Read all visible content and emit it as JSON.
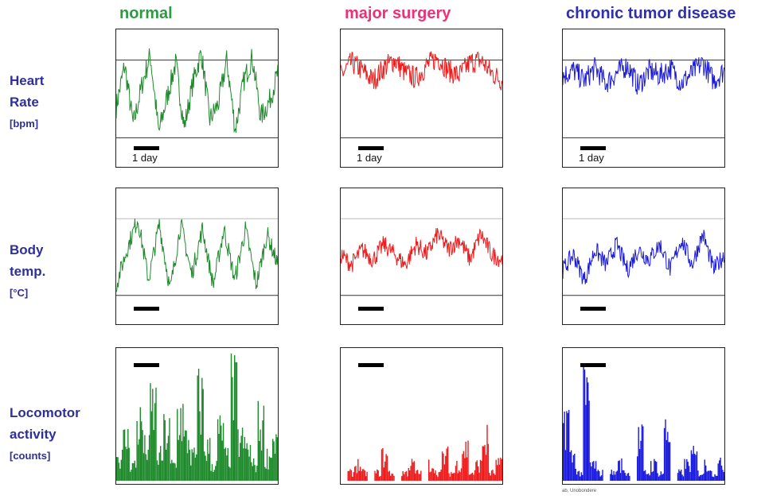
{
  "columns": [
    {
      "title": "normal",
      "color": "#2e9a44"
    },
    {
      "title": "major surgery",
      "color": "#ee2f7a"
    },
    {
      "title": "chronic tumor disease",
      "color": "#2f2fb2"
    }
  ],
  "rows": [
    {
      "label_lines": [
        "Heart",
        "Rate"
      ],
      "unit": "[bpm]"
    },
    {
      "label_lines": [
        "Body",
        "temp."
      ],
      "unit": "[°C]"
    },
    {
      "label_lines": [
        "Locomotor",
        "activity"
      ],
      "unit": "[counts]"
    }
  ],
  "scale_bar_label": "1 day",
  "credit": "ab, Unobondere",
  "colors": {
    "normal": "#1f8a2c",
    "surgery": "#ee1c1c",
    "tumor": "#1a1adc",
    "row_label": "#2f2f9a"
  },
  "chart_data": [
    {
      "type": "line",
      "row": "heart_rate",
      "column": "normal",
      "ylim": [
        300,
        800
      ],
      "ref_lines": [
        400,
        700
      ],
      "series": [
        {
          "values": [
            520,
            680,
            450,
            600,
            720,
            420,
            560,
            690,
            440,
            610,
            730,
            470,
            530,
            700,
            430,
            620,
            710,
            480,
            540,
            650
          ]
        }
      ]
    },
    {
      "type": "line",
      "row": "heart_rate",
      "column": "major surgery",
      "ylim": [
        300,
        800
      ],
      "ref_lines": [
        400,
        700
      ],
      "series": [
        {
          "values": [
            640,
            690,
            660,
            620,
            670,
            700,
            650,
            630,
            680,
            710,
            660,
            640,
            690,
            700,
            650,
            620
          ]
        }
      ]
    },
    {
      "type": "line",
      "row": "heart_rate",
      "column": "chronic tumor disease",
      "ylim": [
        300,
        800
      ],
      "ref_lines": [
        400,
        700
      ],
      "series": [
        {
          "values": [
            640,
            660,
            620,
            670,
            610,
            650,
            680,
            600,
            660,
            640,
            670,
            610,
            650,
            690,
            620,
            660
          ]
        }
      ]
    },
    {
      "type": "line",
      "row": "body_temp",
      "column": "normal",
      "ylim": [
        35.5,
        38.0
      ],
      "ref_lines": [
        36.0,
        37.5
      ],
      "series": [
        {
          "values": [
            36.2,
            36.9,
            37.5,
            36.3,
            37.4,
            36.1,
            37.4,
            36.4,
            37.3,
            36.2,
            37.3,
            36.3,
            37.3,
            36.2,
            37.2,
            36.6
          ]
        }
      ]
    },
    {
      "type": "line",
      "row": "body_temp",
      "column": "major surgery",
      "ylim": [
        35.5,
        38.0
      ],
      "ref_lines": [
        36.0,
        37.5
      ],
      "series": [
        {
          "values": [
            36.8,
            36.6,
            36.9,
            36.7,
            37.0,
            36.8,
            36.6,
            37.0,
            36.8,
            37.2,
            36.9,
            37.1,
            36.7,
            37.2,
            36.8,
            36.7
          ]
        }
      ]
    },
    {
      "type": "line",
      "row": "body_temp",
      "column": "chronic tumor disease",
      "ylim": [
        35.5,
        38.0
      ],
      "ref_lines": [
        36.0,
        37.5
      ],
      "series": [
        {
          "values": [
            36.5,
            36.8,
            36.3,
            36.9,
            36.6,
            37.0,
            36.5,
            36.9,
            36.7,
            37.0,
            36.5,
            37.1,
            36.6,
            37.2,
            36.5,
            36.8
          ]
        }
      ]
    },
    {
      "type": "bar",
      "row": "locomotor_activity",
      "column": "normal",
      "ylim": [
        0,
        12
      ],
      "series": [
        {
          "values": [
            3,
            5,
            2,
            7,
            4,
            9,
            3,
            6,
            2,
            8,
            5,
            3,
            10,
            4,
            2,
            6,
            3,
            11,
            5,
            4,
            2,
            7,
            3,
            5
          ]
        }
      ]
    },
    {
      "type": "bar",
      "row": "locomotor_activity",
      "column": "major surgery",
      "ylim": [
        0,
        12
      ],
      "series": [
        {
          "values": [
            0,
            1,
            2,
            1,
            0,
            1,
            3,
            1,
            0,
            1,
            2,
            1,
            0,
            2,
            1,
            3,
            1,
            2,
            4,
            1,
            2,
            5,
            1,
            2
          ]
        }
      ]
    },
    {
      "type": "bar",
      "row": "locomotor_activity",
      "column": "chronic tumor disease",
      "ylim": [
        0,
        12
      ],
      "series": [
        {
          "values": [
            8,
            3,
            1,
            10,
            2,
            1,
            0,
            1,
            2,
            1,
            0,
            5,
            1,
            2,
            1,
            6,
            0,
            1,
            2,
            3,
            1,
            2,
            1,
            2
          ]
        }
      ]
    }
  ]
}
